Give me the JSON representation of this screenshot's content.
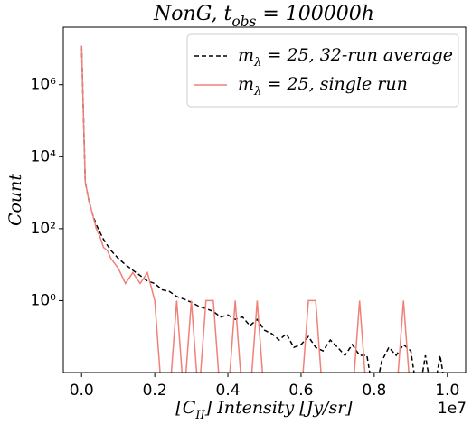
{
  "chart_data": {
    "type": "line",
    "title": "NonG, t_obs = 100000h",
    "x_label": "[C_II] Intensity [Jy/sr]",
    "y_label": "Count",
    "x_offset_label": "1e7",
    "x": [
      0,
      100000,
      200000,
      300000,
      400000,
      500000,
      600000,
      700000,
      800000,
      1000000,
      1200000,
      1400000,
      1600000,
      1800000,
      2000000,
      2200000,
      2400000,
      2600000,
      2800000,
      3000000,
      3200000,
      3400000,
      3600000,
      3800000,
      4000000,
      4200000,
      4400000,
      4600000,
      4800000,
      5000000,
      5200000,
      5400000,
      5600000,
      5800000,
      6000000,
      6200000,
      6400000,
      6600000,
      6800000,
      7000000,
      7200000,
      7400000,
      7600000,
      7800000,
      8000000,
      8200000,
      8400000,
      8600000,
      8800000,
      9000000,
      9200000,
      9400000,
      9600000,
      9800000,
      10000000
    ],
    "series": [
      {
        "name": "m_λ = 25, 32-run average",
        "color": "#000000",
        "linestyle": "dashed",
        "values": [
          12000000,
          2000,
          600,
          250,
          130,
          80,
          50,
          35,
          25,
          15,
          10,
          7,
          5,
          3.5,
          3,
          2,
          1.8,
          1.3,
          1.1,
          0.9,
          0.7,
          0.6,
          0.5,
          0.35,
          0.4,
          0.3,
          0.35,
          0.2,
          0.3,
          0.15,
          0.12,
          0.08,
          0.12,
          0.05,
          0.06,
          0.1,
          0.05,
          0.04,
          0.08,
          0.05,
          0.03,
          0.06,
          0.03,
          0.03,
          0,
          0.02,
          0.05,
          0.03,
          0.06,
          0.04,
          0,
          0.03,
          0,
          0.03,
          0
        ]
      },
      {
        "name": "m_λ = 25, single run",
        "color": "#f08078",
        "linestyle": "solid",
        "values": [
          12000000,
          2000,
          600,
          250,
          100,
          60,
          30,
          25,
          15,
          8,
          3,
          6,
          3,
          6,
          1,
          0,
          0,
          1,
          0,
          1,
          0,
          1,
          1,
          0,
          0,
          1,
          0,
          0,
          1,
          0,
          0,
          0,
          0,
          0,
          0,
          1,
          1,
          0,
          0,
          0,
          0,
          0,
          1,
          0,
          0,
          0,
          0,
          0,
          1,
          0,
          null,
          null,
          null,
          null,
          null
        ]
      }
    ],
    "xlim": [
      -500000,
      10500000
    ],
    "ylim": [
      0.01,
      40000000
    ],
    "log_y": true,
    "xticks": [
      {
        "value": 0,
        "label": "0.0"
      },
      {
        "value": 2000000,
        "label": "0.2"
      },
      {
        "value": 4000000,
        "label": "0.4"
      },
      {
        "value": 6000000,
        "label": "0.6"
      },
      {
        "value": 8000000,
        "label": "0.8"
      },
      {
        "value": 10000000,
        "label": "1.0"
      }
    ],
    "yticks": [
      {
        "value": 1,
        "label": "10⁰"
      },
      {
        "value": 100,
        "label": "10²"
      },
      {
        "value": 10000,
        "label": "10⁴"
      },
      {
        "value": 1000000,
        "label": "10⁶"
      }
    ],
    "legend": "upper right",
    "grid": false
  }
}
